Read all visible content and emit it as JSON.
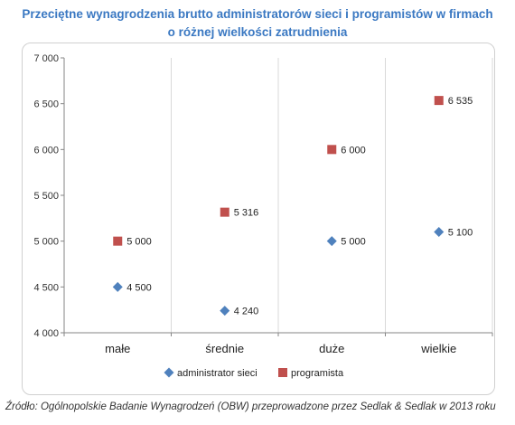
{
  "title_line1": "Przeciętne wynagrodzenia brutto administratorów sieci i programistów w firmach",
  "title_line2": "o różnej wielkości zatrudnienia",
  "source": "Źródło: Ogólnopolskie Badanie Wynagrodzeń (OBW) przeprowadzone  przez Sedlak & Sedlak w 2013 roku",
  "chart_data": {
    "type": "scatter",
    "categories": [
      "małe",
      "średnie",
      "duże",
      "wielkie"
    ],
    "ylim": [
      4000,
      7000
    ],
    "yticks": [
      4000,
      4500,
      5000,
      5500,
      6000,
      6500,
      7000
    ],
    "ytick_labels": [
      "4 000",
      "4 500",
      "5 000",
      "5 500",
      "6 000",
      "6 500",
      "7 000"
    ],
    "grid": "vertical",
    "legend_position": "bottom",
    "series": [
      {
        "name": "administrator sieci",
        "marker": "diamond",
        "color": "#4f81bd",
        "values": [
          4500,
          4240,
          5000,
          5100
        ],
        "labels": [
          "4 500",
          "4 240",
          "5 000",
          "5 100"
        ]
      },
      {
        "name": "programista",
        "marker": "square",
        "color": "#c0504d",
        "values": [
          5000,
          5316,
          6000,
          6535
        ],
        "labels": [
          "5 000",
          "5 316",
          "6 000",
          "6 535"
        ]
      }
    ]
  }
}
